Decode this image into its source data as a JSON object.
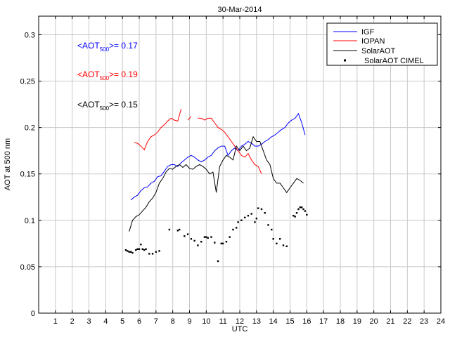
{
  "chart_data": {
    "type": "line",
    "title": "30-Mar-2014",
    "xlabel": "UTC",
    "ylabel": "AOT at 500 nm",
    "xlim": [
      0,
      24
    ],
    "ylim": [
      0,
      0.32
    ],
    "xticks": [
      1,
      2,
      3,
      4,
      5,
      6,
      7,
      8,
      9,
      10,
      11,
      12,
      13,
      14,
      15,
      16,
      17,
      18,
      19,
      20,
      21,
      22,
      23,
      24
    ],
    "yticks": [
      0,
      0.05,
      0.1,
      0.15,
      0.2,
      0.25,
      0.3
    ],
    "ytick_labels": [
      "0",
      "0.05",
      "0.1",
      "0.15",
      "0.2",
      "0.25",
      "0.3"
    ],
    "grid": true,
    "legend_position": "top-right",
    "colors": {
      "IGF": "#0000ff",
      "IOPAN": "#ff0000",
      "SolarAOT": "#000000",
      "SolarAOT CIMEL": "#000000"
    },
    "annotations": [
      {
        "prefix": "<AOT",
        "sub": "500",
        "suffix": ">= 0.17",
        "color": "#0000ff"
      },
      {
        "prefix": "<AOT",
        "sub": "500",
        "suffix": ">= 0.19",
        "color": "#ff0000"
      },
      {
        "prefix": "<AOT",
        "sub": "500",
        "suffix": ">= 0.15",
        "color": "#000000"
      }
    ],
    "series": [
      {
        "name": "IGF",
        "style": "line",
        "x": [
          5.5,
          5.7,
          5.9,
          6.1,
          6.3,
          6.5,
          6.7,
          6.9,
          7.1,
          7.3,
          7.5,
          7.7,
          7.9,
          8.1,
          8.3,
          8.5,
          8.7,
          8.9,
          9.1,
          9.3,
          9.5,
          9.7,
          9.9,
          10.1,
          10.3,
          10.5,
          10.7,
          10.9,
          11.1,
          11.3,
          11.5,
          11.7,
          11.9,
          12.1,
          12.3,
          12.5,
          12.7,
          12.9,
          13.1,
          13.3,
          13.5,
          13.7,
          13.9,
          14.1,
          14.3,
          14.5,
          14.7,
          14.9,
          15.1,
          15.3,
          15.5,
          15.7,
          15.9
        ],
        "y": [
          0.122,
          0.125,
          0.127,
          0.132,
          0.135,
          0.136,
          0.14,
          0.142,
          0.147,
          0.148,
          0.153,
          0.158,
          0.16,
          0.16,
          0.158,
          0.162,
          0.165,
          0.168,
          0.17,
          0.168,
          0.165,
          0.163,
          0.165,
          0.168,
          0.17,
          0.175,
          0.178,
          0.18,
          0.18,
          0.17,
          0.175,
          0.178,
          0.175,
          0.18,
          0.182,
          0.185,
          0.183,
          0.18,
          0.18,
          0.182,
          0.185,
          0.187,
          0.19,
          0.192,
          0.195,
          0.198,
          0.2,
          0.205,
          0.208,
          0.21,
          0.215,
          0.205,
          0.192
        ]
      },
      {
        "name": "IOPAN",
        "style": "line",
        "segments": [
          {
            "x": [
              5.7,
              5.9,
              6.1,
              6.3,
              6.5,
              6.7,
              6.9,
              7.1,
              7.3,
              7.5,
              7.7,
              7.9,
              8.1,
              8.3,
              8.5
            ],
            "y": [
              0.184,
              0.183,
              0.18,
              0.176,
              0.185,
              0.19,
              0.192,
              0.195,
              0.2,
              0.203,
              0.207,
              0.21,
              0.208,
              0.207,
              0.22
            ]
          },
          {
            "x": [
              8.9,
              9.1
            ],
            "y": [
              0.208,
              0.212
            ]
          },
          {
            "x": [
              9.5,
              9.7,
              9.9,
              10.1,
              10.3,
              10.5,
              10.7,
              10.9,
              11.1,
              11.3,
              11.5,
              11.7,
              11.9,
              12.1,
              12.3,
              12.5,
              12.7,
              12.9,
              13.1,
              13.3
            ],
            "y": [
              0.21,
              0.21,
              0.208,
              0.21,
              0.21,
              0.205,
              0.2,
              0.198,
              0.195,
              0.19,
              0.185,
              0.18,
              0.175,
              0.17,
              0.168,
              0.172,
              0.165,
              0.16,
              0.158,
              0.15
            ]
          }
        ]
      },
      {
        "name": "SolarAOT",
        "style": "line",
        "x": [
          5.4,
          5.6,
          5.8,
          6.0,
          6.2,
          6.4,
          6.6,
          6.8,
          7.0,
          7.2,
          7.4,
          7.6,
          7.8,
          8.0,
          8.2,
          8.4,
          8.6,
          8.8,
          9.0,
          9.2,
          9.4,
          9.6,
          9.8,
          10.0,
          10.2,
          10.4,
          10.6,
          10.8,
          11.0,
          11.2,
          11.4,
          11.6,
          11.8,
          12.0,
          12.2,
          12.4,
          12.6,
          12.8,
          13.0,
          13.2,
          13.4,
          13.6,
          13.8,
          14.0,
          14.2,
          14.4,
          14.6,
          14.8,
          15.0,
          15.2,
          15.4,
          15.6,
          15.8
        ],
        "y": [
          0.088,
          0.1,
          0.104,
          0.106,
          0.11,
          0.114,
          0.12,
          0.124,
          0.13,
          0.14,
          0.145,
          0.152,
          0.156,
          0.155,
          0.158,
          0.16,
          0.157,
          0.16,
          0.156,
          0.155,
          0.158,
          0.16,
          0.158,
          0.155,
          0.15,
          0.152,
          0.13,
          0.158,
          0.165,
          0.17,
          0.168,
          0.165,
          0.18,
          0.175,
          0.18,
          0.175,
          0.178,
          0.19,
          0.185,
          0.185,
          0.175,
          0.165,
          0.16,
          0.145,
          0.14,
          0.14,
          0.135,
          0.13,
          0.135,
          0.14,
          0.145,
          0.143,
          0.14
        ]
      },
      {
        "name": "SolarAOT CIMEL",
        "style": "points",
        "x": [
          5.2,
          5.3,
          5.4,
          5.5,
          5.6,
          5.8,
          5.9,
          6.0,
          6.1,
          6.2,
          6.3,
          6.4,
          6.6,
          6.8,
          7.0,
          7.2,
          7.8,
          8.3,
          8.4,
          8.7,
          8.9,
          9.1,
          9.3,
          9.5,
          9.7,
          9.9,
          10.0,
          10.1,
          10.3,
          10.5,
          10.7,
          10.9,
          11.0,
          11.2,
          11.4,
          11.6,
          11.8,
          11.9,
          12.1,
          12.3,
          12.5,
          12.7,
          12.9,
          13.0,
          13.1,
          13.3,
          13.5,
          13.7,
          13.9,
          14.0,
          14.2,
          14.4,
          14.6,
          14.8,
          15.2,
          15.3,
          15.4,
          15.5,
          15.6,
          15.7,
          15.8,
          15.9,
          16.0
        ],
        "y": [
          0.068,
          0.067,
          0.066,
          0.066,
          0.065,
          0.068,
          0.069,
          0.069,
          0.074,
          0.069,
          0.068,
          0.069,
          0.064,
          0.064,
          0.066,
          0.067,
          0.09,
          0.089,
          0.09,
          0.083,
          0.085,
          0.08,
          0.078,
          0.073,
          0.077,
          0.082,
          0.082,
          0.081,
          0.082,
          0.076,
          0.056,
          0.075,
          0.075,
          0.077,
          0.082,
          0.09,
          0.092,
          0.098,
          0.1,
          0.103,
          0.105,
          0.107,
          0.098,
          0.102,
          0.113,
          0.112,
          0.108,
          0.095,
          0.09,
          0.08,
          0.075,
          0.08,
          0.073,
          0.072,
          0.105,
          0.104,
          0.108,
          0.112,
          0.114,
          0.114,
          0.112,
          0.11,
          0.106
        ]
      }
    ]
  }
}
